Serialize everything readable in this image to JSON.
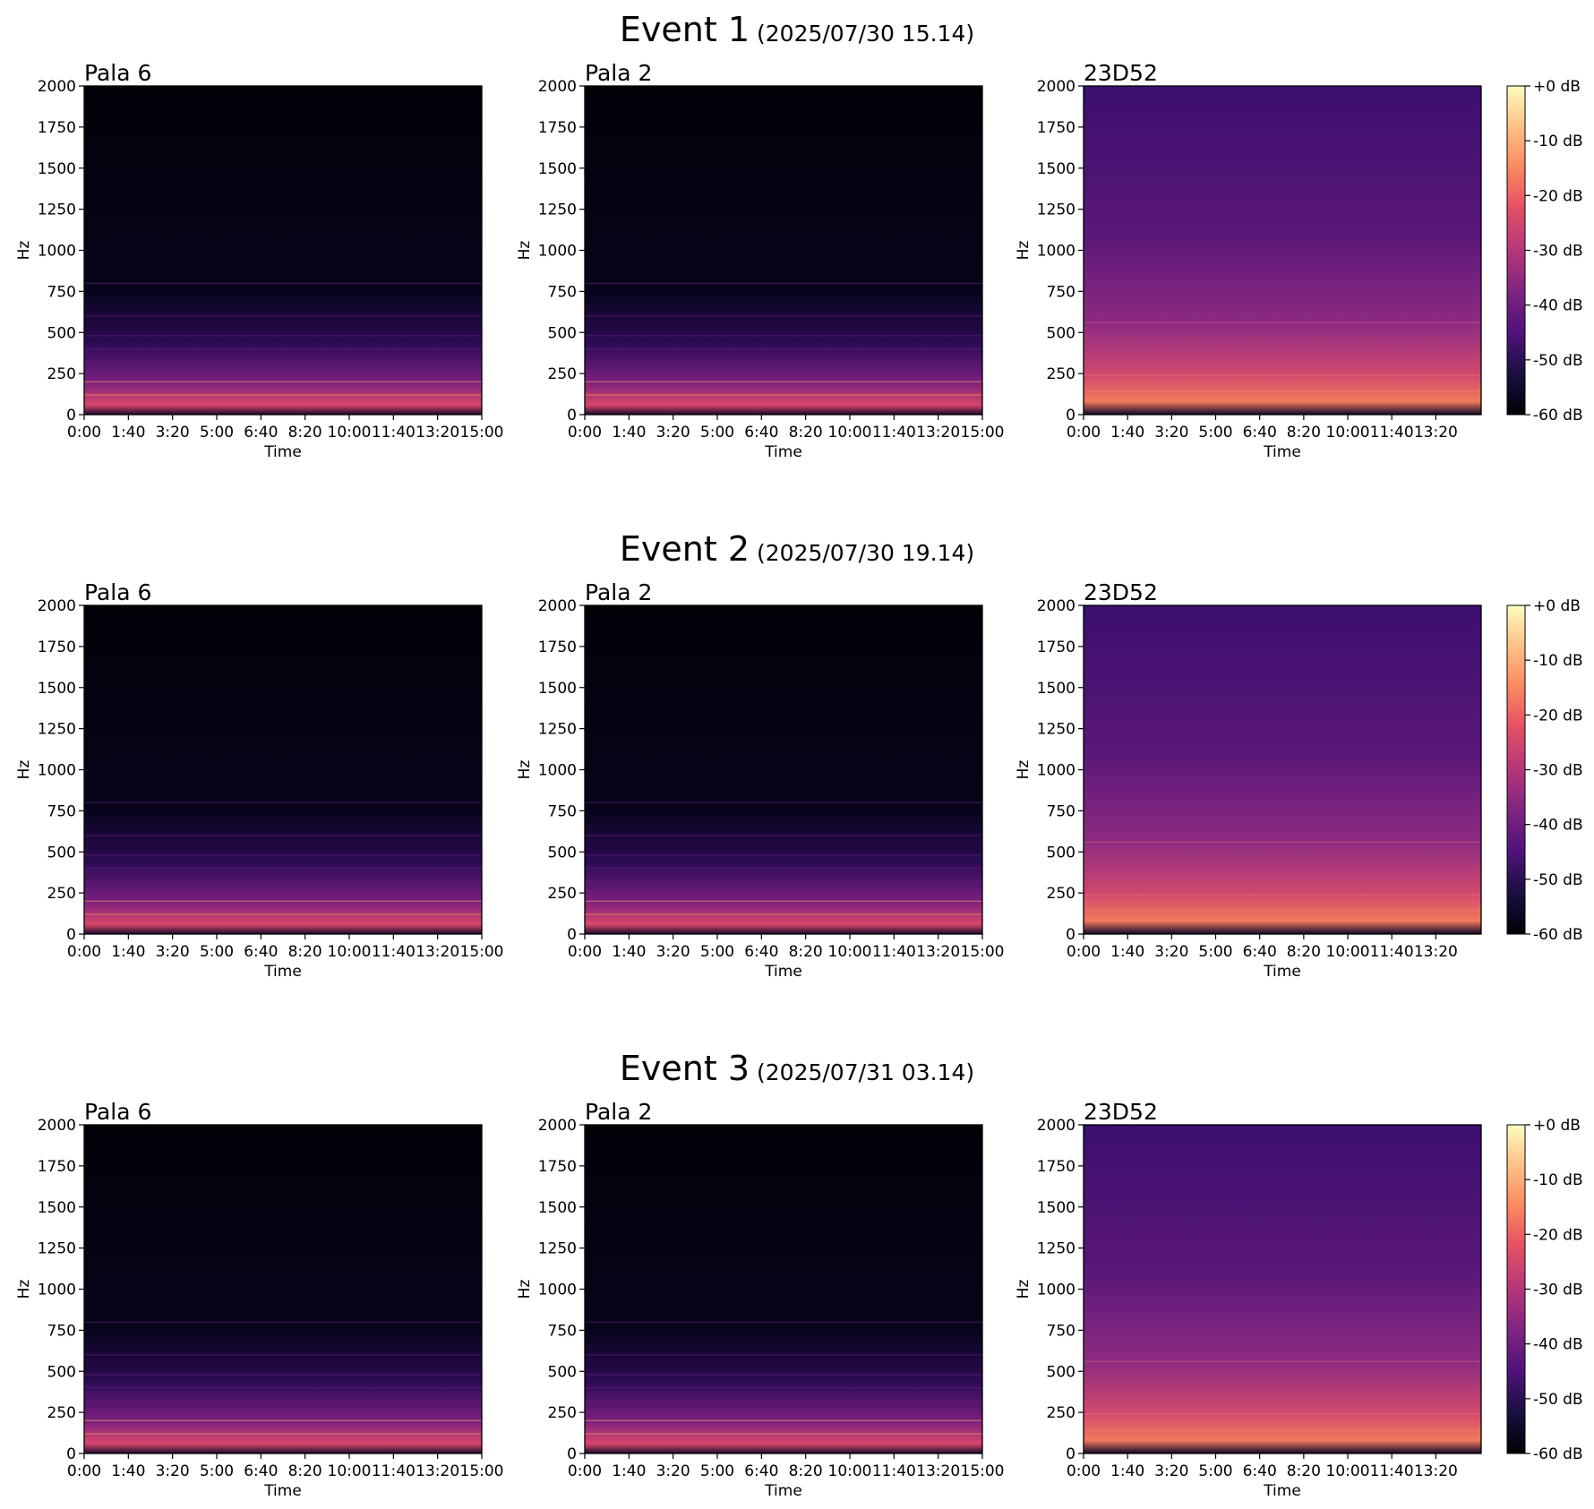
{
  "events": [
    {
      "title": "Event 1",
      "timestamp": "(2025/07/30 15.14)"
    },
    {
      "title": "Event 2",
      "timestamp": "(2025/07/30 19.14)"
    },
    {
      "title": "Event 3",
      "timestamp": "(2025/07/31 03.14)"
    }
  ],
  "chart_data": [
    {
      "type": "spectrogram",
      "title": "Pala 6",
      "xlabel": "Time",
      "ylabel": "Hz",
      "xlim": [
        0,
        900
      ],
      "xticks": [
        {
          "value": 0,
          "label": "0:00"
        },
        {
          "value": 100,
          "label": "1:40"
        },
        {
          "value": 200,
          "label": "3:20"
        },
        {
          "value": 300,
          "label": "5:00"
        },
        {
          "value": 400,
          "label": "6:40"
        },
        {
          "value": 500,
          "label": "8:20"
        },
        {
          "value": 600,
          "label": "10:00"
        },
        {
          "value": 700,
          "label": "11:40"
        },
        {
          "value": 800,
          "label": "13:20"
        },
        {
          "value": 900,
          "label": "15:00"
        }
      ],
      "ylim": [
        0,
        2000
      ],
      "yticks": [
        0,
        250,
        500,
        750,
        1000,
        1250,
        1500,
        1750,
        2000
      ]
    },
    {
      "type": "spectrogram",
      "title": "Pala 2",
      "xlabel": "Time",
      "ylabel": "Hz",
      "xlim": [
        0,
        900
      ],
      "xticks": [
        {
          "value": 0,
          "label": "0:00"
        },
        {
          "value": 100,
          "label": "1:40"
        },
        {
          "value": 200,
          "label": "3:20"
        },
        {
          "value": 300,
          "label": "5:00"
        },
        {
          "value": 400,
          "label": "6:40"
        },
        {
          "value": 500,
          "label": "8:20"
        },
        {
          "value": 600,
          "label": "10:00"
        },
        {
          "value": 700,
          "label": "11:40"
        },
        {
          "value": 800,
          "label": "13:20"
        },
        {
          "value": 900,
          "label": "15:00"
        }
      ],
      "ylim": [
        0,
        2000
      ],
      "yticks": [
        0,
        250,
        500,
        750,
        1000,
        1250,
        1500,
        1750,
        2000
      ]
    },
    {
      "type": "spectrogram",
      "title": "23D52",
      "xlabel": "Time",
      "ylabel": "Hz",
      "xlim": [
        0,
        903
      ],
      "xticks": [
        {
          "value": 0,
          "label": "0:00"
        },
        {
          "value": 100,
          "label": "1:40"
        },
        {
          "value": 200,
          "label": "3:20"
        },
        {
          "value": 300,
          "label": "5:00"
        },
        {
          "value": 400,
          "label": "6:40"
        },
        {
          "value": 500,
          "label": "8:20"
        },
        {
          "value": 600,
          "label": "10:00"
        },
        {
          "value": 700,
          "label": "11:40"
        },
        {
          "value": 800,
          "label": "13:20"
        }
      ],
      "ylim": [
        0,
        2000
      ],
      "yticks": [
        0,
        250,
        500,
        750,
        1000,
        1250,
        1500,
        1750,
        2000
      ],
      "colorbar": {
        "colormap": "magma",
        "lim": [
          -60,
          0
        ],
        "ticks": [
          {
            "value": 0,
            "label": "+0 dB"
          },
          {
            "value": -10,
            "label": "-10 dB"
          },
          {
            "value": -20,
            "label": "-20 dB"
          },
          {
            "value": -30,
            "label": "-30 dB"
          },
          {
            "value": -40,
            "label": "-40 dB"
          },
          {
            "value": -50,
            "label": "-50 dB"
          },
          {
            "value": -60,
            "label": "-60 dB"
          }
        ]
      }
    },
    {
      "type": "spectrogram",
      "title": "Pala 6",
      "xlabel": "Time",
      "ylabel": "Hz",
      "xlim": [
        0,
        900
      ],
      "xticks": [
        {
          "value": 0,
          "label": "0:00"
        },
        {
          "value": 100,
          "label": "1:40"
        },
        {
          "value": 200,
          "label": "3:20"
        },
        {
          "value": 300,
          "label": "5:00"
        },
        {
          "value": 400,
          "label": "6:40"
        },
        {
          "value": 500,
          "label": "8:20"
        },
        {
          "value": 600,
          "label": "10:00"
        },
        {
          "value": 700,
          "label": "11:40"
        },
        {
          "value": 800,
          "label": "13:20"
        },
        {
          "value": 900,
          "label": "15:00"
        }
      ],
      "ylim": [
        0,
        2000
      ],
      "yticks": [
        0,
        250,
        500,
        750,
        1000,
        1250,
        1500,
        1750,
        2000
      ]
    },
    {
      "type": "spectrogram",
      "title": "Pala 2",
      "xlabel": "Time",
      "ylabel": "Hz",
      "xlim": [
        0,
        900
      ],
      "xticks": [
        {
          "value": 0,
          "label": "0:00"
        },
        {
          "value": 100,
          "label": "1:40"
        },
        {
          "value": 200,
          "label": "3:20"
        },
        {
          "value": 300,
          "label": "5:00"
        },
        {
          "value": 400,
          "label": "6:40"
        },
        {
          "value": 500,
          "label": "8:20"
        },
        {
          "value": 600,
          "label": "10:00"
        },
        {
          "value": 700,
          "label": "11:40"
        },
        {
          "value": 800,
          "label": "13:20"
        },
        {
          "value": 900,
          "label": "15:00"
        }
      ],
      "ylim": [
        0,
        2000
      ],
      "yticks": [
        0,
        250,
        500,
        750,
        1000,
        1250,
        1500,
        1750,
        2000
      ]
    },
    {
      "type": "spectrogram",
      "title": "23D52",
      "xlabel": "Time",
      "ylabel": "Hz",
      "xlim": [
        0,
        903
      ],
      "xticks": [
        {
          "value": 0,
          "label": "0:00"
        },
        {
          "value": 100,
          "label": "1:40"
        },
        {
          "value": 200,
          "label": "3:20"
        },
        {
          "value": 300,
          "label": "5:00"
        },
        {
          "value": 400,
          "label": "6:40"
        },
        {
          "value": 500,
          "label": "8:20"
        },
        {
          "value": 600,
          "label": "10:00"
        },
        {
          "value": 700,
          "label": "11:40"
        },
        {
          "value": 800,
          "label": "13:20"
        }
      ],
      "ylim": [
        0,
        2000
      ],
      "yticks": [
        0,
        250,
        500,
        750,
        1000,
        1250,
        1500,
        1750,
        2000
      ],
      "colorbar": {
        "colormap": "magma",
        "lim": [
          -60,
          0
        ],
        "ticks": [
          {
            "value": 0,
            "label": "+0 dB"
          },
          {
            "value": -10,
            "label": "-10 dB"
          },
          {
            "value": -20,
            "label": "-20 dB"
          },
          {
            "value": -30,
            "label": "-30 dB"
          },
          {
            "value": -40,
            "label": "-40 dB"
          },
          {
            "value": -50,
            "label": "-50 dB"
          },
          {
            "value": -60,
            "label": "-60 dB"
          }
        ]
      }
    },
    {
      "type": "spectrogram",
      "title": "Pala 6",
      "xlabel": "Time",
      "ylabel": "Hz",
      "xlim": [
        0,
        900
      ],
      "xticks": [
        {
          "value": 0,
          "label": "0:00"
        },
        {
          "value": 100,
          "label": "1:40"
        },
        {
          "value": 200,
          "label": "3:20"
        },
        {
          "value": 300,
          "label": "5:00"
        },
        {
          "value": 400,
          "label": "6:40"
        },
        {
          "value": 500,
          "label": "8:20"
        },
        {
          "value": 600,
          "label": "10:00"
        },
        {
          "value": 700,
          "label": "11:40"
        },
        {
          "value": 800,
          "label": "13:20"
        },
        {
          "value": 900,
          "label": "15:00"
        }
      ],
      "ylim": [
        0,
        2000
      ],
      "yticks": [
        0,
        250,
        500,
        750,
        1000,
        1250,
        1500,
        1750,
        2000
      ]
    },
    {
      "type": "spectrogram",
      "title": "Pala 2",
      "xlabel": "Time",
      "ylabel": "Hz",
      "xlim": [
        0,
        900
      ],
      "xticks": [
        {
          "value": 0,
          "label": "0:00"
        },
        {
          "value": 100,
          "label": "1:40"
        },
        {
          "value": 200,
          "label": "3:20"
        },
        {
          "value": 300,
          "label": "5:00"
        },
        {
          "value": 400,
          "label": "6:40"
        },
        {
          "value": 500,
          "label": "8:20"
        },
        {
          "value": 600,
          "label": "10:00"
        },
        {
          "value": 700,
          "label": "11:40"
        },
        {
          "value": 800,
          "label": "13:20"
        },
        {
          "value": 900,
          "label": "15:00"
        }
      ],
      "ylim": [
        0,
        2000
      ],
      "yticks": [
        0,
        250,
        500,
        750,
        1000,
        1250,
        1500,
        1750,
        2000
      ]
    },
    {
      "type": "spectrogram",
      "title": "23D52",
      "xlabel": "Time",
      "ylabel": "Hz",
      "xlim": [
        0,
        903
      ],
      "xticks": [
        {
          "value": 0,
          "label": "0:00"
        },
        {
          "value": 100,
          "label": "1:40"
        },
        {
          "value": 200,
          "label": "3:20"
        },
        {
          "value": 300,
          "label": "5:00"
        },
        {
          "value": 400,
          "label": "6:40"
        },
        {
          "value": 500,
          "label": "8:20"
        },
        {
          "value": 600,
          "label": "10:00"
        },
        {
          "value": 700,
          "label": "11:40"
        },
        {
          "value": 800,
          "label": "13:20"
        }
      ],
      "ylim": [
        0,
        2000
      ],
      "yticks": [
        0,
        250,
        500,
        750,
        1000,
        1250,
        1500,
        1750,
        2000
      ],
      "colorbar": {
        "colormap": "magma",
        "lim": [
          -60,
          0
        ],
        "ticks": [
          {
            "value": 0,
            "label": "+0 dB"
          },
          {
            "value": -10,
            "label": "-10 dB"
          },
          {
            "value": -20,
            "label": "-20 dB"
          },
          {
            "value": -30,
            "label": "-30 dB"
          },
          {
            "value": -40,
            "label": "-40 dB"
          },
          {
            "value": -50,
            "label": "-50 dB"
          },
          {
            "value": -60,
            "label": "-60 dB"
          }
        ]
      }
    }
  ]
}
